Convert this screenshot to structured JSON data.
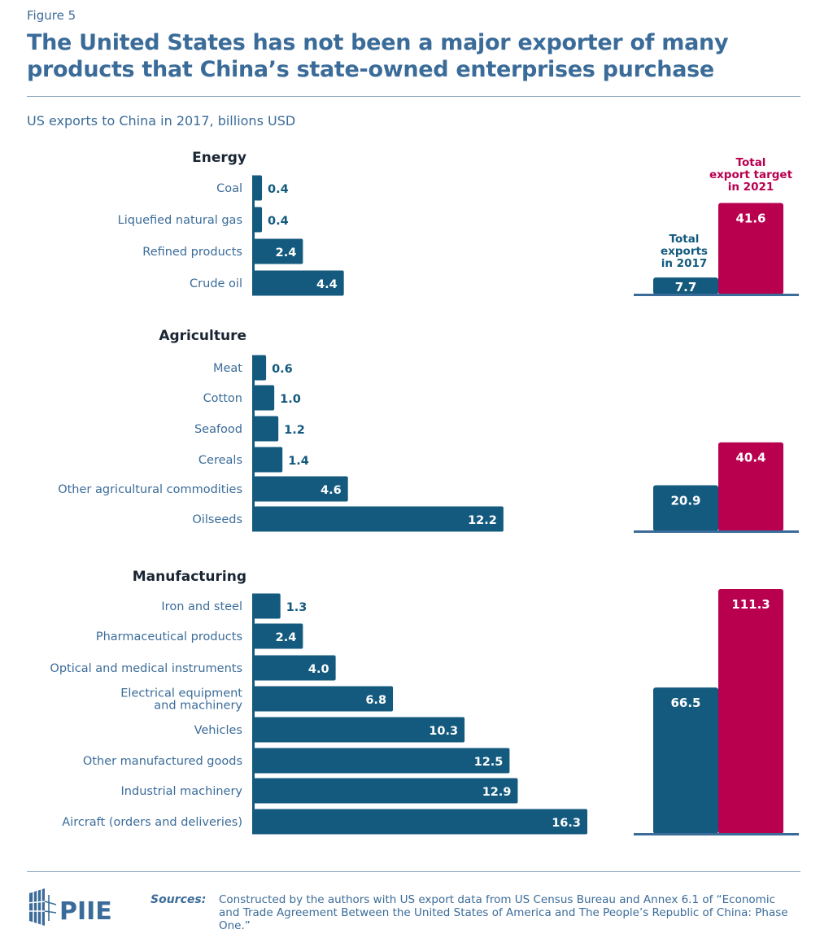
{
  "figure_label": "Figure 5",
  "title": "The United States has not been a major exporter of many products that China’s state-owned enterprises purchase",
  "subtitle": "US exports to China in 2017, billions USD",
  "colors": {
    "bar": "#135a7e",
    "target": "#b8004f",
    "text": "#3b6c99",
    "heading": "#1a2533"
  },
  "chart_data": {
    "type": "bar",
    "orientation": "horizontal",
    "unit": "billions USD",
    "groups": [
      {
        "name": "Energy",
        "categories": [
          "Coal",
          "Liquefied natural gas",
          "Refined products",
          "Crude oil"
        ],
        "values": [
          0.4,
          0.4,
          2.4,
          4.4
        ],
        "total_2017": 7.7,
        "target_2021": 41.6
      },
      {
        "name": "Agriculture",
        "categories": [
          "Meat",
          "Cotton",
          "Seafood",
          "Cereals",
          "Other agricultural commodities",
          "Oilseeds"
        ],
        "values": [
          0.6,
          1.0,
          1.2,
          1.4,
          4.6,
          12.2
        ],
        "total_2017": 20.9,
        "target_2021": 40.4
      },
      {
        "name": "Manufacturing",
        "categories": [
          "Iron and steel",
          "Pharmaceutical products",
          "Optical and medical instruments",
          "Electrical equipment\nand machinery",
          "Vehicles",
          "Other manufactured goods",
          "Industrial machinery",
          "Aircraft (orders and deliveries)"
        ],
        "values": [
          1.3,
          2.4,
          4.0,
          6.8,
          10.3,
          12.5,
          12.9,
          16.3
        ],
        "total_2017": 66.5,
        "target_2021": 111.3
      }
    ],
    "comparison_labels": {
      "total_2017": "Total\nexports\nin 2017",
      "target_2021": "Total\nexport target\nin 2021"
    }
  },
  "sources": {
    "label": "Sources:",
    "text": "Constructed by the authors with US export data from US Census Bureau and Annex 6.1 of “Economic and Trade Agreement Between the United States of America and The People’s Republic of China: Phase One.”"
  },
  "logo": {
    "text": "PIIE"
  }
}
